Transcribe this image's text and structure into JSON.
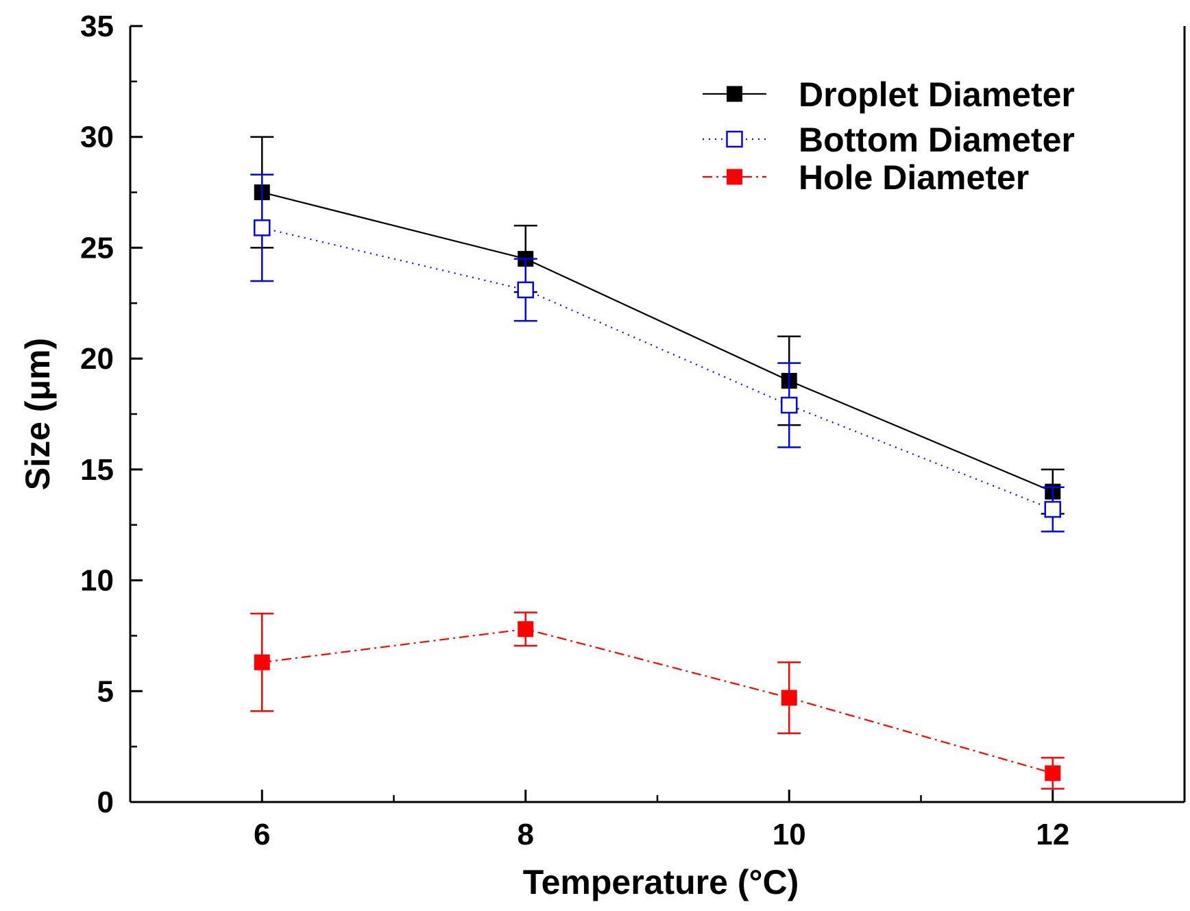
{
  "chart_data": {
    "type": "line",
    "title": "",
    "xlabel": "Temperature (°C)",
    "ylabel": "Size (μm)",
    "xlim": [
      5,
      13
    ],
    "ylim": [
      0,
      35
    ],
    "x_ticks": [
      6,
      8,
      10,
      12
    ],
    "x_tick_labels": [
      "6",
      "8",
      "10",
      "12"
    ],
    "y_ticks": [
      0,
      5,
      10,
      15,
      20,
      25,
      30,
      35
    ],
    "y_tick_labels": [
      "0",
      "5",
      "10",
      "15",
      "20",
      "25",
      "30",
      "35"
    ],
    "grid": false,
    "legend_position": "top-right",
    "series": [
      {
        "name": "Droplet Diameter",
        "color": "#000000",
        "line_style": "solid",
        "marker": "filled-square",
        "x": [
          6,
          8,
          10,
          12
        ],
        "values": [
          27.5,
          24.5,
          19.0,
          14.0
        ],
        "error": [
          2.5,
          1.5,
          2.0,
          1.0
        ]
      },
      {
        "name": "Bottom Diameter",
        "color": "#0000ff",
        "line_style": "dotted",
        "marker": "open-square",
        "x": [
          6,
          8,
          10,
          12
        ],
        "values": [
          25.9,
          23.1,
          17.9,
          13.2
        ],
        "error": [
          2.4,
          1.4,
          1.9,
          1.0
        ]
      },
      {
        "name": "Hole Diameter",
        "color": "#ff0000",
        "line_style": "dash-dot",
        "marker": "filled-square",
        "x": [
          6,
          8,
          10,
          12
        ],
        "values": [
          6.3,
          7.8,
          4.7,
          1.3
        ],
        "error": [
          2.2,
          0.75,
          1.6,
          0.7
        ]
      }
    ]
  }
}
